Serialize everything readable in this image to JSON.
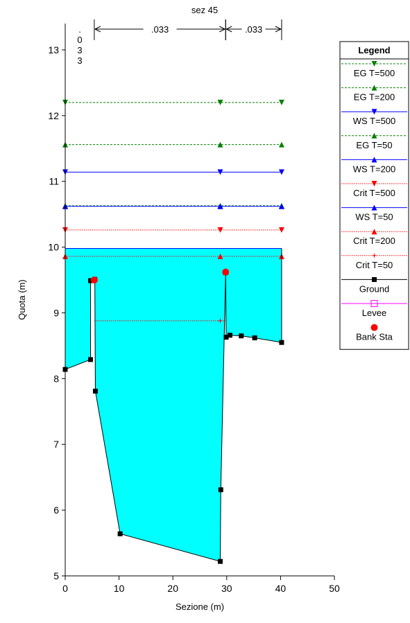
{
  "chart_data": {
    "type": "line",
    "title": "sez 45",
    "xlabel": "Sezione (m)",
    "ylabel": "Quota (m)",
    "xlim": [
      0,
      50
    ],
    "ylim": [
      5,
      13.4
    ],
    "x_ticks": [
      "0",
      "10",
      "20",
      "30",
      "40",
      "50"
    ],
    "y_ticks": [
      "5",
      "6",
      "7",
      "8",
      "9",
      "10",
      "11",
      "12",
      "13"
    ],
    "grid": false,
    "legend_position": "right",
    "legend_title": "Legend",
    "manning": [
      {
        "label": ".033",
        "x_from": 5.4,
        "x_to": 29.8
      },
      {
        "label": ".033",
        "x_from": 29.8,
        "x_to": 40.2
      }
    ],
    "manning_left": {
      "chars": [
        ".",
        "0",
        "3",
        "3"
      ]
    },
    "water_fill_color": "#00ffff",
    "series": [
      {
        "name": "EG T=500",
        "color": "#008000",
        "style": "dashed",
        "marker": "triangle-down",
        "y": 12.2,
        "x": [
          0,
          40.2
        ],
        "marker_x": [
          0,
          28.8,
          40.2
        ]
      },
      {
        "name": "EG T=200",
        "color": "#008000",
        "style": "dashed",
        "marker": "triangle-up",
        "y": 11.56,
        "x": [
          0,
          40.2
        ],
        "marker_x": [
          0,
          28.8,
          40.2
        ]
      },
      {
        "name": "WS T=500",
        "color": "#0000ff",
        "style": "solid",
        "marker": "triangle-down",
        "y": 11.14,
        "x": [
          0,
          40.2
        ],
        "marker_x": [
          0,
          28.8,
          40.2
        ]
      },
      {
        "name": "EG T=50",
        "color": "#008000",
        "style": "dashed",
        "marker": "triangle-up",
        "y": 10.63,
        "x": [
          0,
          40.2
        ],
        "marker_x": [
          0,
          28.8,
          40.2
        ]
      },
      {
        "name": "WS T=200",
        "color": "#0000ff",
        "style": "solid",
        "marker": "triangle-up",
        "y": 10.62,
        "x": [
          0,
          40.2
        ],
        "marker_x": [
          0,
          28.8,
          40.2
        ]
      },
      {
        "name": "Crit T=500",
        "color": "#ff0000",
        "style": "dotted",
        "marker": "triangle-down",
        "y": 10.26,
        "x": [
          0,
          40.2
        ],
        "marker_x": [
          0,
          28.8,
          40.2
        ]
      },
      {
        "name": "WS T=50",
        "color": "#0000ff",
        "style": "solid",
        "marker": "none",
        "y": 9.98,
        "x": [
          0,
          40.2
        ],
        "marker_x": []
      },
      {
        "name": "Crit T=200",
        "color": "#ff0000",
        "style": "dotted",
        "marker": "triangle-up",
        "y": 9.86,
        "x": [
          0,
          40.2
        ],
        "marker_x": [
          0,
          28.8,
          40.2
        ]
      },
      {
        "name": "Crit T=50",
        "color": "#ff0000",
        "style": "dotted",
        "marker": "plus",
        "y": 8.88,
        "x": [
          5.4,
          29.8
        ],
        "marker_x": [
          28.8
        ]
      }
    ],
    "ground": {
      "name": "Ground",
      "color": "#000000",
      "x": [
        0,
        4.7,
        4.7,
        5.5,
        5.6,
        10.2,
        28.8,
        28.9,
        29.8,
        29.9,
        30.6,
        32.7,
        35.2,
        40.2,
        40.2
      ],
      "y": [
        8.14,
        8.29,
        9.49,
        9.51,
        7.81,
        5.64,
        5.22,
        6.31,
        9.61,
        8.63,
        8.66,
        8.65,
        8.62,
        8.55,
        9.98
      ]
    },
    "levee": {
      "name": "Levee",
      "color": "#ff00ff",
      "marker": "square-open"
    },
    "bank_stations": {
      "name": "Bank Sta",
      "color": "#ff0000",
      "marker": "circle",
      "points": [
        [
          5.4,
          9.5
        ],
        [
          29.8,
          9.62
        ]
      ]
    },
    "legend": [
      "EG T=500",
      "EG T=200",
      "WS T=500",
      "EG T=50",
      "WS T=200",
      "Crit T=500",
      "WS T=50",
      "Crit T=200",
      "Crit T=50",
      "Ground",
      "Levee",
      "Bank Sta"
    ]
  }
}
